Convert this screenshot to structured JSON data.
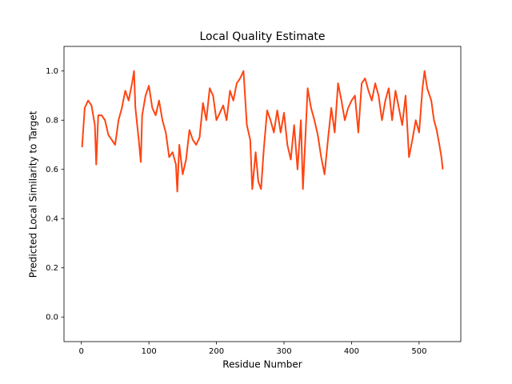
{
  "chart_data": {
    "type": "line",
    "title": "Local Quality Estimate",
    "x_label": "Residue Number",
    "y_label": "Predicted Local Similarity to Target",
    "x": [
      1,
      5,
      10,
      15,
      20,
      22,
      25,
      30,
      35,
      40,
      45,
      50,
      55,
      60,
      65,
      70,
      75,
      78,
      80,
      85,
      88,
      90,
      95,
      100,
      105,
      110,
      115,
      120,
      125,
      130,
      135,
      140,
      142,
      145,
      150,
      155,
      160,
      165,
      170,
      175,
      180,
      185,
      190,
      195,
      200,
      205,
      210,
      215,
      220,
      225,
      230,
      235,
      240,
      245,
      250,
      253,
      258,
      262,
      266,
      270,
      275,
      280,
      285,
      290,
      295,
      300,
      305,
      310,
      315,
      320,
      325,
      328,
      332,
      335,
      340,
      345,
      350,
      355,
      360,
      365,
      370,
      375,
      380,
      385,
      390,
      395,
      400,
      405,
      410,
      415,
      420,
      425,
      430,
      435,
      440,
      445,
      450,
      455,
      460,
      465,
      470,
      475,
      480,
      485,
      490,
      495,
      500,
      505,
      508,
      512,
      518,
      522,
      526,
      530,
      533,
      535
    ],
    "series": [
      {
        "color": "#ff4512",
        "values": [
          0.69,
          0.85,
          0.88,
          0.86,
          0.78,
          0.62,
          0.82,
          0.82,
          0.8,
          0.74,
          0.72,
          0.7,
          0.8,
          0.85,
          0.92,
          0.88,
          0.95,
          1.0,
          0.85,
          0.72,
          0.63,
          0.82,
          0.9,
          0.94,
          0.85,
          0.82,
          0.88,
          0.8,
          0.75,
          0.65,
          0.67,
          0.62,
          0.51,
          0.7,
          0.58,
          0.64,
          0.76,
          0.72,
          0.7,
          0.73,
          0.87,
          0.8,
          0.93,
          0.9,
          0.8,
          0.83,
          0.86,
          0.8,
          0.92,
          0.88,
          0.95,
          0.97,
          1.0,
          0.78,
          0.72,
          0.52,
          0.67,
          0.55,
          0.52,
          0.68,
          0.84,
          0.8,
          0.75,
          0.84,
          0.75,
          0.83,
          0.7,
          0.64,
          0.78,
          0.6,
          0.8,
          0.52,
          0.75,
          0.93,
          0.85,
          0.8,
          0.74,
          0.65,
          0.58,
          0.72,
          0.85,
          0.75,
          0.95,
          0.88,
          0.8,
          0.85,
          0.88,
          0.9,
          0.75,
          0.95,
          0.97,
          0.92,
          0.88,
          0.95,
          0.9,
          0.8,
          0.88,
          0.93,
          0.8,
          0.92,
          0.85,
          0.78,
          0.9,
          0.65,
          0.72,
          0.8,
          0.75,
          0.93,
          1.0,
          0.93,
          0.88,
          0.8,
          0.76,
          0.7,
          0.65,
          0.6
        ]
      }
    ],
    "xlim": [
      -25.7,
      561.7
    ],
    "ylim": [
      -0.1,
      1.1
    ],
    "xticks": [
      0,
      100,
      200,
      300,
      400,
      500
    ],
    "yticks": [
      {
        "value": 0,
        "label": "0.0"
      },
      0.2,
      0.4,
      0.6,
      0.8,
      {
        "value": 1,
        "label": "1.0"
      }
    ]
  }
}
